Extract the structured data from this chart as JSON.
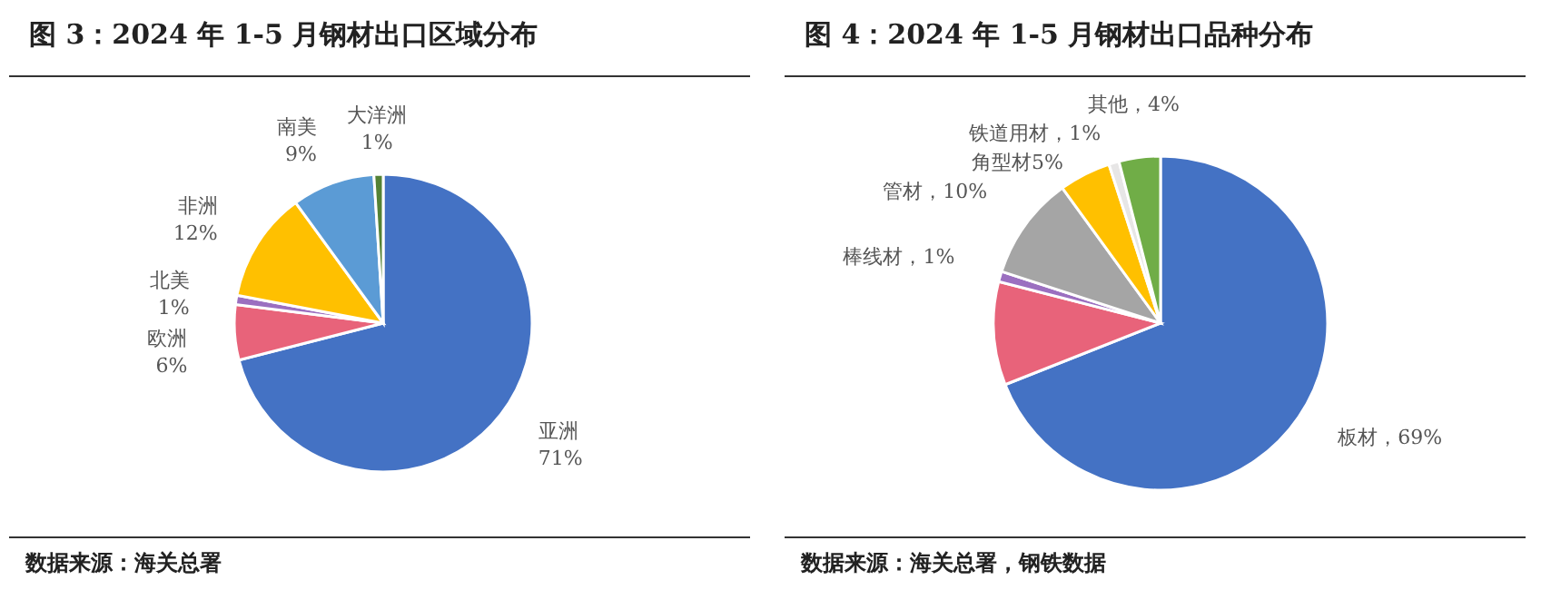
{
  "chart_data": [
    {
      "type": "pie",
      "title": "图 3：2024 年 1-5 月钢材出口区域分布",
      "categories": [
        "亚洲",
        "欧洲",
        "北美",
        "非洲",
        "南美",
        "大洋洲"
      ],
      "values": [
        71,
        6,
        1,
        12,
        9,
        1
      ],
      "value_labels": [
        "71%",
        "6%",
        "1%",
        "12%",
        "9%",
        "1%"
      ],
      "colors": [
        "#4472c4",
        "#e8637a",
        "#9b6fc0",
        "#ffc000",
        "#5b9bd5",
        "#548235"
      ],
      "annotations": [
        "数据来源：海关总署"
      ]
    },
    {
      "type": "pie",
      "title": "图 4：2024 年 1-5 月钢材出口品种分布",
      "categories": [
        "板材",
        null,
        "棒线材",
        "管材",
        "角型材",
        "铁道用材",
        "其他"
      ],
      "values": [
        69,
        10,
        1,
        10,
        5,
        1,
        4
      ],
      "value_labels": [
        "，69%",
        null,
        "，1%",
        "，10%",
        "5%",
        "，1%",
        "，4%"
      ],
      "colors": [
        "#4472c4",
        "#e8637a",
        "#9b6fc0",
        "#a5a5a5",
        "#ffc000",
        "#e7e6e6",
        "#70ad47"
      ],
      "annotations": [
        "数据来源：海关总署，钢铁数据"
      ]
    }
  ]
}
